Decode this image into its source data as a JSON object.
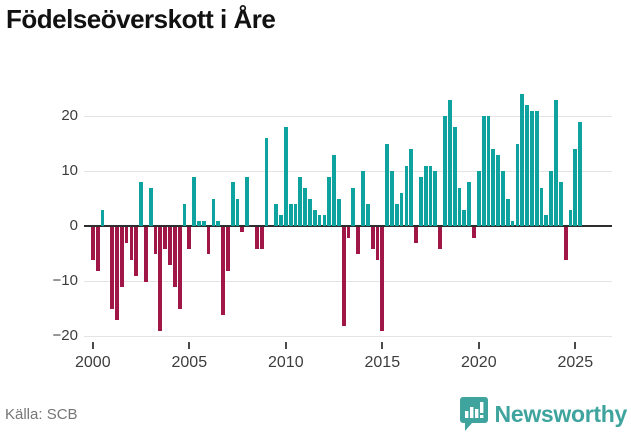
{
  "title": "Födelseöverskott i Åre",
  "source": "Källa: SCB",
  "logo": {
    "text": "Newsworthy",
    "icon": "newsworthy-badge-icon"
  },
  "colors": {
    "positive": "#0fa3a0",
    "negative": "#a01646",
    "grid": "#e4e4e4",
    "zero_line": "#2e2e2e",
    "axis_text": "#3d3d3d",
    "source_text": "#767676",
    "logo_teal": "#3fa49e",
    "title_text": "#111111"
  },
  "chart_data": {
    "type": "bar",
    "title": "Födelseöverskott i Åre",
    "xlabel": "",
    "ylabel": "",
    "ylim": [
      -22,
      26
    ],
    "grid": true,
    "y_ticks": [
      {
        "label": "20",
        "value": 20
      },
      {
        "label": "10",
        "value": 10
      },
      {
        "label": "0",
        "value": 0
      },
      {
        "label": "−10",
        "value": -10
      },
      {
        "label": "−20",
        "value": -20
      }
    ],
    "x_ticks": [
      {
        "label": "2000",
        "year": 2000
      },
      {
        "label": "2005",
        "year": 2005
      },
      {
        "label": "2010",
        "year": 2010
      },
      {
        "label": "2015",
        "year": 2015
      },
      {
        "label": "2020",
        "year": 2020
      },
      {
        "label": "2025",
        "year": 2025
      }
    ],
    "start_year": 2000,
    "period": "quarterly",
    "quarters": [
      "2000Q1",
      "2000Q2",
      "2000Q3",
      "2000Q4",
      "2001Q1",
      "2001Q2",
      "2001Q3",
      "2001Q4",
      "2002Q1",
      "2002Q2",
      "2002Q3",
      "2002Q4",
      "2003Q1",
      "2003Q2",
      "2003Q3",
      "2003Q4",
      "2004Q1",
      "2004Q2",
      "2004Q3",
      "2004Q4",
      "2005Q1",
      "2005Q2",
      "2005Q3",
      "2005Q4",
      "2006Q1",
      "2006Q2",
      "2006Q3",
      "2006Q4",
      "2007Q1",
      "2007Q2",
      "2007Q3",
      "2007Q4",
      "2008Q1",
      "2008Q2",
      "2008Q3",
      "2008Q4",
      "2009Q1",
      "2009Q2",
      "2009Q3",
      "2009Q4",
      "2010Q1",
      "2010Q2",
      "2010Q3",
      "2010Q4",
      "2011Q1",
      "2011Q2",
      "2011Q3",
      "2011Q4",
      "2012Q1",
      "2012Q2",
      "2012Q3",
      "2012Q4",
      "2013Q1",
      "2013Q2",
      "2013Q3",
      "2013Q4",
      "2014Q1",
      "2014Q2",
      "2014Q3",
      "2014Q4",
      "2015Q1",
      "2015Q2",
      "2015Q3",
      "2015Q4",
      "2016Q1",
      "2016Q2",
      "2016Q3",
      "2016Q4",
      "2017Q1",
      "2017Q2",
      "2017Q3",
      "2017Q4",
      "2018Q1",
      "2018Q2",
      "2018Q3",
      "2018Q4",
      "2019Q1",
      "2019Q2",
      "2019Q3",
      "2019Q4",
      "2020Q1",
      "2020Q2",
      "2020Q3",
      "2020Q4",
      "2021Q1",
      "2021Q2",
      "2021Q3",
      "2021Q4",
      "2022Q1",
      "2022Q2",
      "2022Q3",
      "2022Q4",
      "2023Q1",
      "2023Q2",
      "2023Q3",
      "2023Q4",
      "2024Q1",
      "2024Q2",
      "2024Q3",
      "2024Q4",
      "2025Q1",
      "2025Q2"
    ],
    "values": [
      -6,
      -8,
      3,
      0,
      -15,
      -17,
      -11,
      -3,
      -6,
      -9,
      8,
      -10,
      7,
      -5,
      -19,
      -4,
      -7,
      -11,
      -15,
      4,
      -4,
      9,
      1,
      1,
      -5,
      5,
      1,
      -16,
      -8,
      8,
      5,
      -1,
      9,
      0,
      -4,
      -4,
      16,
      0,
      4,
      2,
      18,
      4,
      4,
      9,
      7,
      5,
      3,
      2,
      2,
      9,
      13,
      5,
      -18,
      -2,
      7,
      -5,
      10,
      4,
      -4,
      -6,
      -19,
      15,
      10,
      4,
      6,
      11,
      14,
      -3,
      9,
      11,
      11,
      10,
      -4,
      20,
      23,
      18,
      7,
      3,
      8,
      -2,
      10,
      20,
      20,
      14,
      13,
      10,
      5,
      1,
      15,
      24,
      22,
      21,
      21,
      7,
      2,
      10,
      23,
      8,
      -6,
      3,
      14,
      19
    ]
  }
}
